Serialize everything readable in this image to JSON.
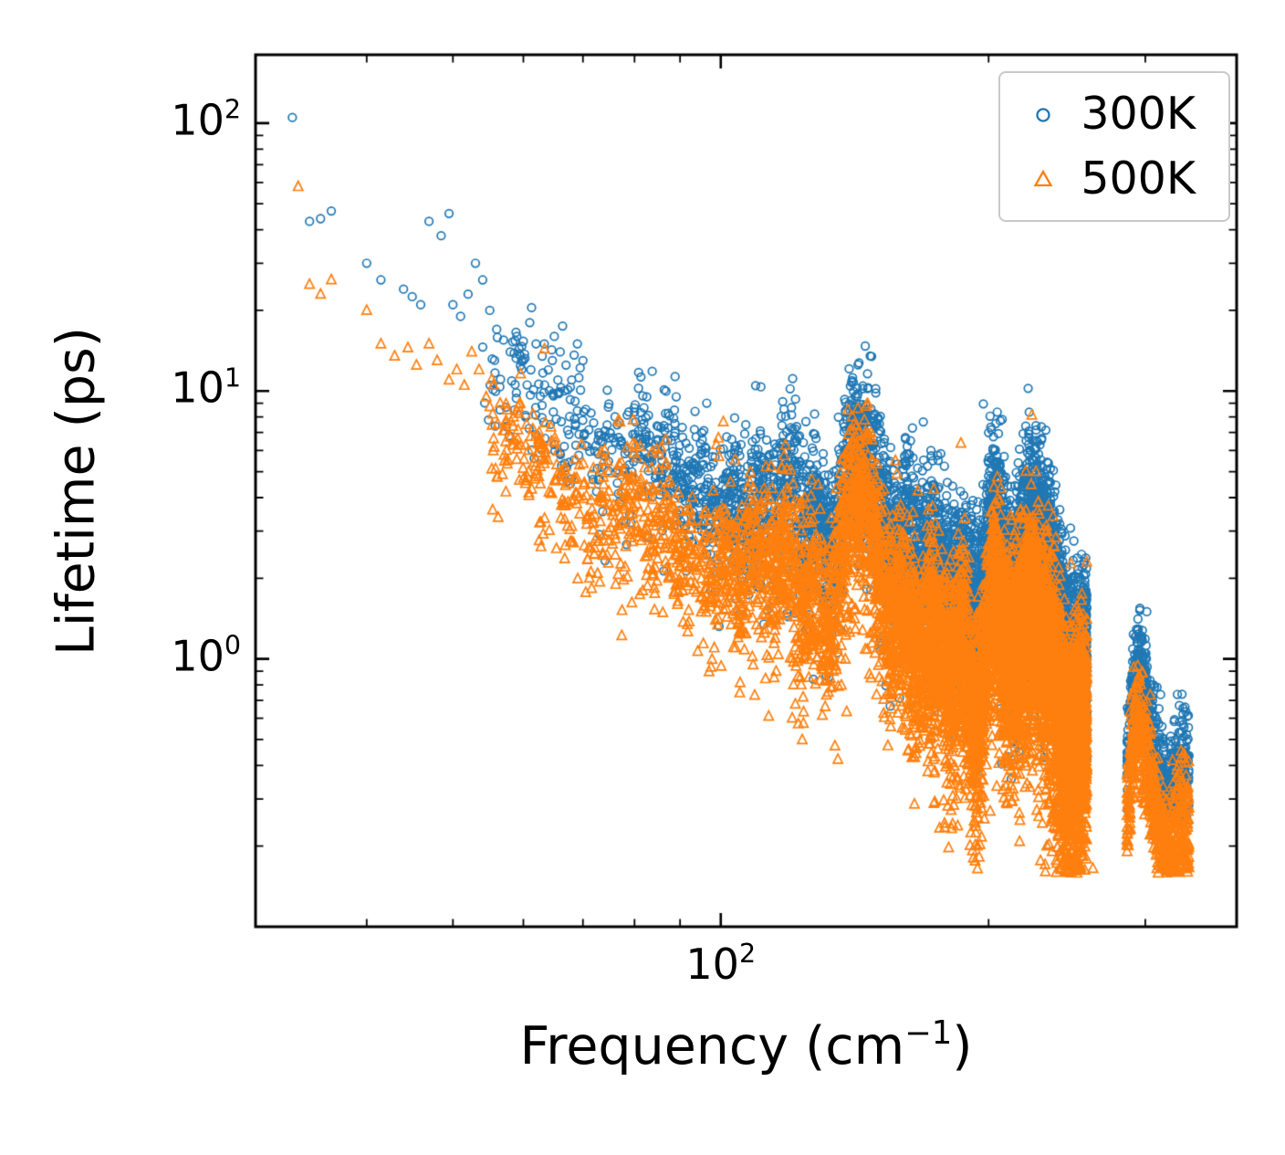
{
  "figure": {
    "background": "#ffffff",
    "axes": {
      "x": {
        "scale": "log",
        "label": {
          "prefix": "Frequency (cm",
          "sup": "−1",
          "suffix": ")"
        },
        "tick_labels": [
          {
            "base": "10",
            "exp": "2",
            "value": 100
          }
        ]
      },
      "y": {
        "scale": "log",
        "label": "Lifetime (ps)",
        "tick_labels": [
          {
            "base": "10",
            "exp": "2",
            "value": 100
          },
          {
            "base": "10",
            "exp": "1",
            "value": 10
          },
          {
            "base": "10",
            "exp": "0",
            "value": 1
          }
        ]
      }
    },
    "legend": {
      "position": "upper right"
    }
  },
  "chart_data": {
    "type": "scatter",
    "title": "",
    "xlabel": "Frequency (cm⁻¹)",
    "ylabel": "Lifetime (ps)",
    "xscale": "log",
    "yscale": "log",
    "xlim": [
      30,
      380
    ],
    "ylim": [
      0.1,
      180
    ],
    "grid": false,
    "legend_position": "upper right",
    "description": "Phonon mode lifetimes vs frequency at two temperatures; dense log-log scatter bands decaying roughly as a power law, with narrow resonant spikes near 143 and 227 cm⁻¹, a spectral gap near 258–286 cm⁻¹, and an isolated high-frequency optical cluster near 286–336 cm⁻¹.",
    "series": [
      {
        "name": "300K",
        "marker": "circle",
        "color": "#1f77b4",
        "explicit_points": [
          [
            33,
            105
          ],
          [
            34.5,
            43
          ],
          [
            35.5,
            44
          ],
          [
            36.5,
            47
          ],
          [
            40,
            30
          ],
          [
            41.5,
            26
          ],
          [
            44,
            24
          ],
          [
            45,
            22.5
          ],
          [
            46,
            21
          ],
          [
            47,
            43
          ],
          [
            48.5,
            38
          ],
          [
            49.5,
            46
          ],
          [
            50,
            21
          ],
          [
            51,
            19
          ],
          [
            52,
            23
          ],
          [
            53,
            30
          ],
          [
            54,
            26
          ],
          [
            55,
            20
          ],
          [
            56,
            17
          ],
          [
            57,
            15.5
          ],
          [
            58,
            14
          ],
          [
            59,
            16
          ],
          [
            60,
            13
          ],
          [
            61,
            18
          ],
          [
            62,
            15
          ],
          [
            63,
            13.5
          ],
          [
            64,
            12
          ],
          [
            65,
            16
          ],
          [
            66,
            14
          ],
          [
            67,
            12.5
          ],
          [
            68,
            11
          ],
          [
            69,
            15
          ],
          [
            70,
            13
          ]
        ],
        "band": {
          "seed": 101,
          "n": 7000,
          "x0": 54,
          "x1": 258,
          "density_power": 1.6,
          "profile": [
            [
              54,
              1.06
            ],
            [
              62,
              0.96
            ],
            [
              70,
              0.86
            ],
            [
              85,
              0.73
            ],
            [
              100,
              0.62
            ],
            [
              115,
              0.55
            ],
            [
              130,
              0.5
            ],
            [
              145,
              0.44
            ],
            [
              160,
              0.4
            ],
            [
              180,
              0.32
            ],
            [
              200,
              0.26
            ],
            [
              215,
              0.2
            ],
            [
              230,
              0.14
            ],
            [
              245,
              0.09
            ],
            [
              258,
              0.05
            ]
          ],
          "sigma": 0.11,
          "sigma_end": 0.18,
          "tail_prob": 0.12,
          "tail_max": 0.45,
          "spikes": [
            {
              "f": 120,
              "a": 0.1,
              "w": 0.01
            },
            {
              "f": 143,
              "a": 0.42,
              "w": 0.014
            },
            {
              "f": 202,
              "a": 0.18,
              "w": 0.012
            },
            {
              "f": 227,
              "a": 0.3,
              "w": 0.012
            }
          ],
          "dips": [
            {
              "f": 194,
              "a": -0.1,
              "w": 0.008
            },
            {
              "f": 250,
              "a": -0.08,
              "w": 0.01
            }
          ],
          "wiggles": [
            {
              "amp": 0.05,
              "cycles": 30,
              "phase": 0.0
            },
            {
              "amp": 0.04,
              "cycles": 7.3,
              "phase": 1.2
            }
          ],
          "floor": -0.6
        },
        "cluster": {
          "seed": 102,
          "n": 620,
          "x0": 286,
          "x1": 336,
          "log_uniform": true,
          "profile": [
            [
              286,
              -0.38
            ],
            [
              290,
              -0.14
            ],
            [
              295,
              -0.02
            ],
            [
              300,
              -0.12
            ],
            [
              306,
              -0.28
            ],
            [
              312,
              -0.4
            ],
            [
              318,
              -0.52
            ],
            [
              324,
              -0.46
            ],
            [
              329,
              -0.34
            ],
            [
              333,
              -0.36
            ],
            [
              336,
              -0.42
            ]
          ],
          "sigma": 0.1,
          "sigma_end": 0.1,
          "tail_prob": 0.2,
          "tail_max": 0.25,
          "spikes": [],
          "dips": [],
          "wiggles": [],
          "floor": -0.6
        }
      },
      {
        "name": "500K",
        "marker": "triangle",
        "color": "#ff7f0e",
        "explicit_points": [
          [
            33.5,
            58
          ],
          [
            34.5,
            25
          ],
          [
            35.5,
            23
          ],
          [
            36.5,
            26
          ],
          [
            40,
            20
          ],
          [
            41.5,
            15
          ],
          [
            43,
            13.5
          ],
          [
            44.5,
            14.5
          ],
          [
            45.5,
            12.5
          ],
          [
            47,
            15
          ],
          [
            48,
            13
          ],
          [
            49.5,
            11
          ],
          [
            50.5,
            12
          ],
          [
            51.5,
            10.5
          ],
          [
            52.5,
            14
          ],
          [
            53.5,
            12
          ],
          [
            54.5,
            9.5
          ],
          [
            55.5,
            10.5
          ],
          [
            56.5,
            9
          ],
          [
            57.5,
            8.5
          ],
          [
            58.5,
            8
          ],
          [
            59.5,
            9
          ],
          [
            60.5,
            7.5
          ],
          [
            61.5,
            8.2
          ],
          [
            62.5,
            7
          ],
          [
            63.5,
            7.6
          ],
          [
            64.5,
            6.5
          ],
          [
            262,
            0.165
          ]
        ],
        "band": {
          "seed": 201,
          "n": 8000,
          "x0": 55,
          "x1": 258,
          "density_power": 1.6,
          "profile": [
            [
              55,
              0.8
            ],
            [
              62,
              0.7
            ],
            [
              70,
              0.6
            ],
            [
              85,
              0.47
            ],
            [
              100,
              0.36
            ],
            [
              115,
              0.29
            ],
            [
              130,
              0.24
            ],
            [
              145,
              0.19
            ],
            [
              160,
              0.14
            ],
            [
              180,
              0.08
            ],
            [
              200,
              0.03
            ],
            [
              215,
              -0.03
            ],
            [
              230,
              -0.1
            ],
            [
              245,
              -0.16
            ],
            [
              258,
              -0.2
            ]
          ],
          "sigma": 0.11,
          "sigma_end": 0.19,
          "tail_prob": 0.16,
          "tail_max": 0.55,
          "spikes": [
            {
              "f": 120,
              "a": 0.08,
              "w": 0.01
            },
            {
              "f": 143,
              "a": 0.45,
              "w": 0.014
            },
            {
              "f": 202,
              "a": 0.15,
              "w": 0.012
            },
            {
              "f": 227,
              "a": 0.28,
              "w": 0.012
            }
          ],
          "dips": [
            {
              "f": 194,
              "a": -0.28,
              "w": 0.008
            },
            {
              "f": 250,
              "a": -0.1,
              "w": 0.01
            }
          ],
          "wiggles": [
            {
              "amp": 0.05,
              "cycles": 30,
              "phase": 0.5
            },
            {
              "amp": 0.045,
              "cycles": 7.3,
              "phase": 1.9
            }
          ],
          "floor": -0.8
        },
        "cluster": {
          "seed": 202,
          "n": 700,
          "x0": 286,
          "x1": 336,
          "log_uniform": true,
          "profile": [
            [
              286,
              -0.6
            ],
            [
              290,
              -0.35
            ],
            [
              295,
              -0.22
            ],
            [
              300,
              -0.34
            ],
            [
              306,
              -0.5
            ],
            [
              312,
              -0.62
            ],
            [
              318,
              -0.72
            ],
            [
              324,
              -0.66
            ],
            [
              329,
              -0.55
            ],
            [
              333,
              -0.58
            ],
            [
              336,
              -0.64
            ]
          ],
          "sigma": 0.1,
          "sigma_end": 0.1,
          "tail_prob": 0.25,
          "tail_max": 0.22,
          "spikes": [],
          "dips": [],
          "wiggles": [],
          "floor": -0.8
        }
      }
    ]
  }
}
